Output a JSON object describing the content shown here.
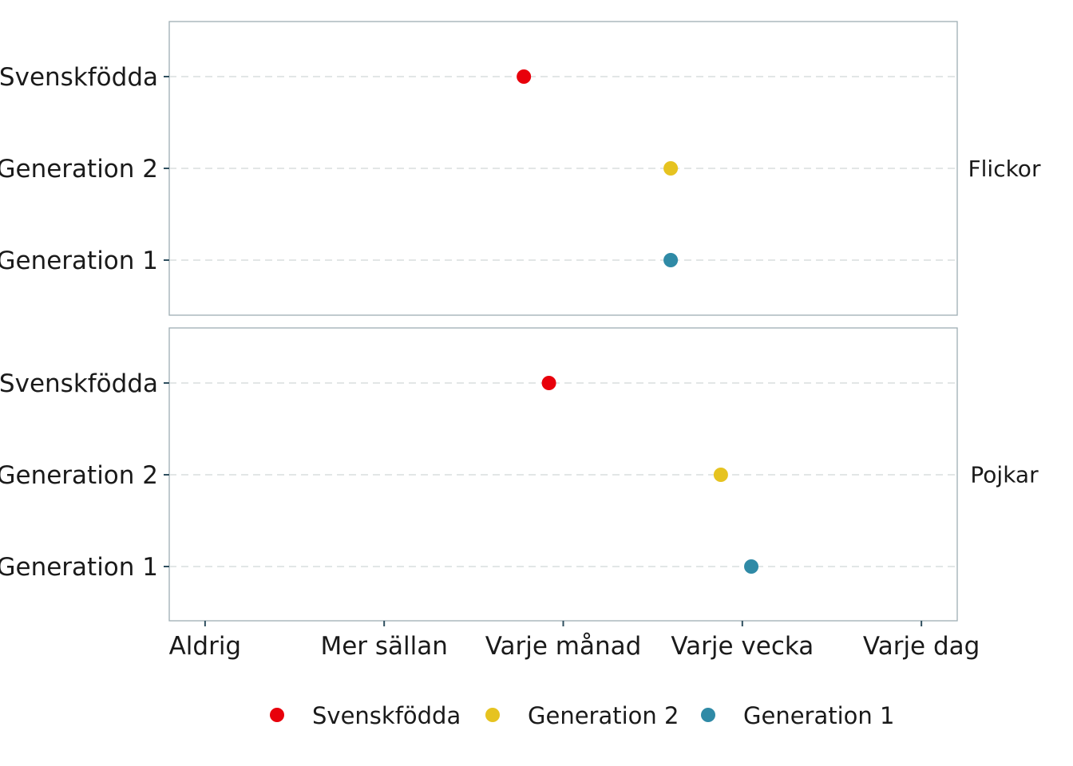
{
  "chart_data": {
    "type": "scatter",
    "x_categories": [
      "Aldrig",
      "Mer sällan",
      "Varje månad",
      "Varje vecka",
      "Varje dag"
    ],
    "xlim": [
      0.8,
      5.2
    ],
    "y_categories": [
      "Svenskfödda",
      "Generation 2",
      "Generation 1"
    ],
    "series_colors": {
      "Svenskfödda": "#e8000b",
      "Generation 2": "#e6c320",
      "Generation 1": "#2f8aa6"
    },
    "panels": [
      {
        "strip_label": "Flickor",
        "points": [
          {
            "group": "Svenskfödda",
            "x": 2.78
          },
          {
            "group": "Generation 2",
            "x": 3.6
          },
          {
            "group": "Generation 1",
            "x": 3.6
          }
        ]
      },
      {
        "strip_label": "Pojkar",
        "points": [
          {
            "group": "Svenskfödda",
            "x": 2.92
          },
          {
            "group": "Generation 2",
            "x": 3.88
          },
          {
            "group": "Generation 1",
            "x": 4.05
          }
        ]
      }
    ],
    "legend": {
      "position": "bottom",
      "items": [
        "Svenskfödda",
        "Generation 2",
        "Generation 1"
      ]
    },
    "grid": "horizontal-dashed"
  }
}
